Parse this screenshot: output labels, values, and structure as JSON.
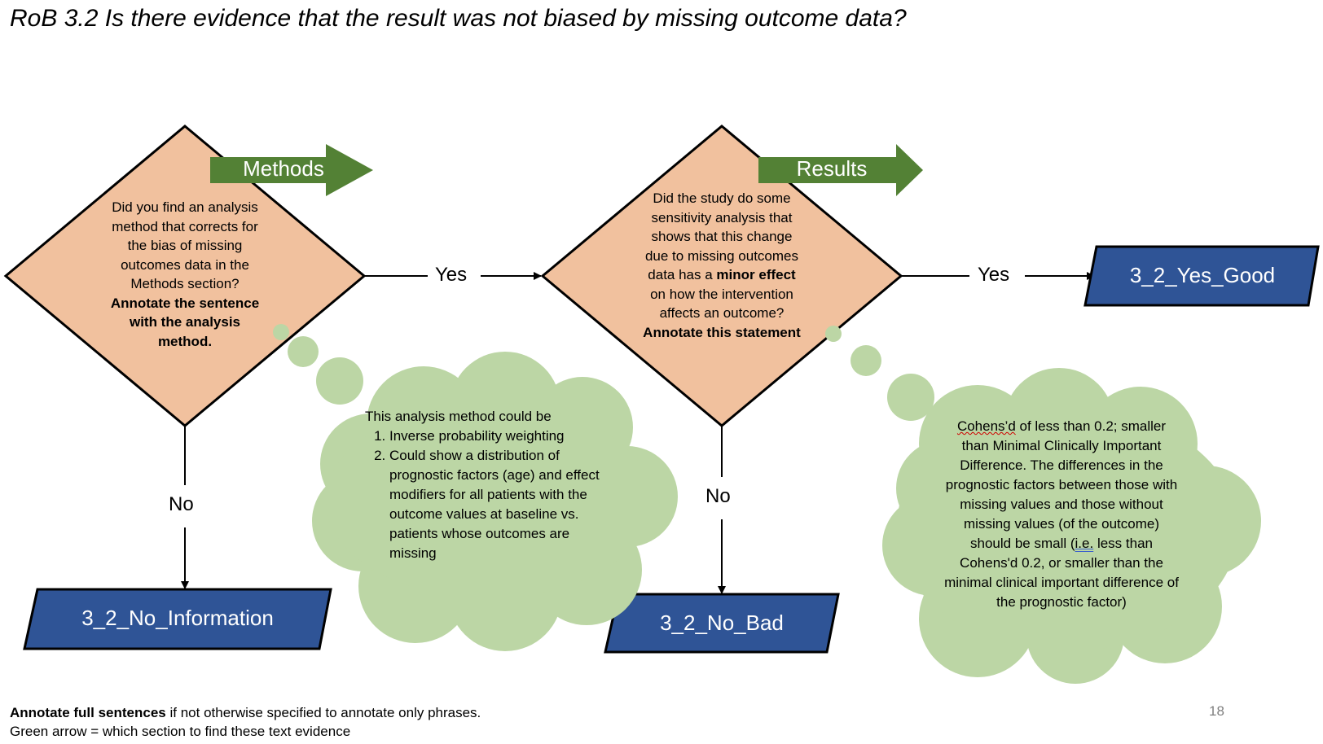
{
  "title": "RoB 3.2 Is there evidence that the result was not biased by missing outcome data?",
  "colors": {
    "diamond_fill": "#f1c19e",
    "arrow_green": "#538135",
    "terminal_blue": "#2f5496",
    "cloud_green": "#bcd6a5"
  },
  "decision1": {
    "text": "Did you find an analysis method that corrects for the bias of missing outcomes data in the Methods section?",
    "bold_text": "Annotate the sentence with the analysis method.",
    "section_label": "Methods"
  },
  "decision2": {
    "text_before": "Did the study do some sensitivity analysis that shows that this change due to missing outcomes data has a",
    "bold_phrase": "minor effect",
    "text_after": "on how the intervention affects an outcome?",
    "bold_end": "Annotate this statement",
    "section_label": "Results"
  },
  "edges": {
    "d1_yes": "Yes",
    "d1_no": "No",
    "d2_yes": "Yes",
    "d2_no": "No"
  },
  "terminals": {
    "no_information": "3_2_No_Information",
    "no_bad": "3_2_No_Bad",
    "yes_good": "3_2_Yes_Good"
  },
  "cloud1": {
    "intro": "This analysis method could be",
    "items": [
      "Inverse probability weighting",
      "Could show a distribution of prognostic factors (age) and effect modifiers for all patients with the outcome values at baseline vs. patients whose outcomes are missing"
    ]
  },
  "cloud2": {
    "word1": "Cohens’d",
    "text1": " of less than 0.2; smaller than Minimal Clinically Important Difference. The differences in the prognostic factors between those with missing values and those without missing values (of the outcome) should be small (",
    "word2": "i.e.",
    "text2": " less than Cohens'd 0.2, or smaller than the minimal clinical important difference of the prognostic factor)"
  },
  "footer": {
    "line1_bold": "Annotate full sentences",
    "line1_rest": " if not otherwise specified to annotate only phrases.",
    "line2": "Green arrow = which section to find these text evidence"
  },
  "page_number": "18"
}
